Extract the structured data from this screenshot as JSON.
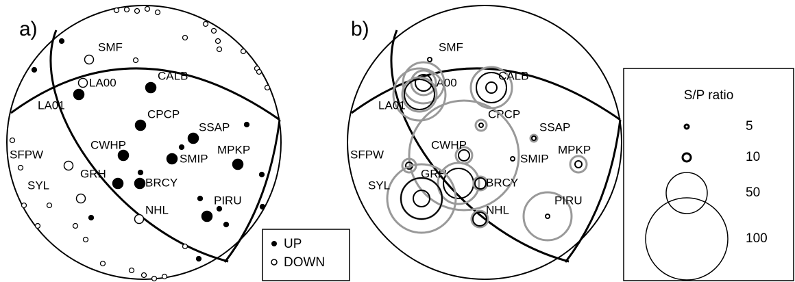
{
  "panel_a": {
    "label": "a)",
    "legend": {
      "up": "UP",
      "down": "DOWN"
    }
  },
  "panel_b": {
    "label": "b)",
    "legend": {
      "title": "S/P ratio",
      "values": [
        5,
        10,
        50,
        100
      ]
    }
  },
  "stations": [
    "SMF",
    "LA00",
    "LA01",
    "CALB",
    "CPCP",
    "SSAP",
    "CWHP",
    "SMIP",
    "MPKP",
    "SFPW",
    "GRH",
    "BRCY",
    "SYL",
    "NHL",
    "PIRU"
  ]
}
